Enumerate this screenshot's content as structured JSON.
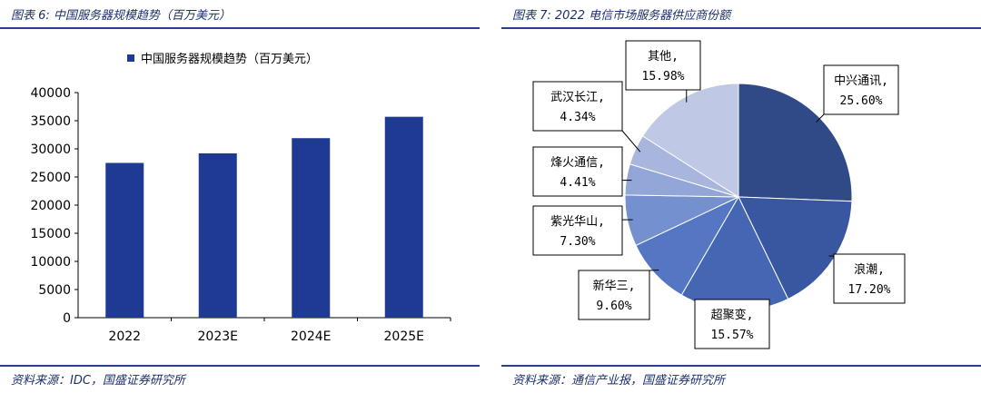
{
  "left": {
    "title": "图表 6:  中国服务器规模趋势（百万美元）",
    "source": "资料来源：IDC，国盛证券研究所"
  },
  "right": {
    "title": "图表 7:  2022 电信市场服务器供应商份额",
    "source": "资料来源：通信产业报，国盛证券研究所"
  },
  "chart_data": [
    {
      "type": "bar",
      "title": "",
      "legend": "中国服务器规模趋势（百万美元）",
      "legend_position": "top",
      "categories": [
        "2022",
        "2023E",
        "2024E",
        "2025E"
      ],
      "values": [
        27500,
        29200,
        31900,
        35700
      ],
      "ylim": [
        0,
        40000
      ],
      "yticks": [
        0,
        5000,
        10000,
        15000,
        20000,
        25000,
        30000,
        35000,
        40000
      ],
      "xlabel": "",
      "ylabel": "",
      "grid": false,
      "colors": {
        "bar": "#1f3a93"
      }
    },
    {
      "type": "pie",
      "title": "",
      "slices": [
        {
          "name": "中兴通讯",
          "value": 25.6,
          "label": "25.60%",
          "color": "#2f4a86"
        },
        {
          "name": "浪潮",
          "value": 17.2,
          "label": "17.20%",
          "color": "#3957a0"
        },
        {
          "name": "超聚变",
          "value": 15.57,
          "label": "15.57%",
          "color": "#4566b3"
        },
        {
          "name": "新华三",
          "value": 9.6,
          "label": "9.60%",
          "color": "#5476c3"
        },
        {
          "name": "紫光华山",
          "value": 7.3,
          "label": "7.30%",
          "color": "#7590cf"
        },
        {
          "name": "烽火通信",
          "value": 4.41,
          "label": "4.41%",
          "color": "#93a6d8"
        },
        {
          "name": "武汉长江",
          "value": 4.34,
          "label": "4.34%",
          "color": "#a8b6de"
        },
        {
          "name": "其他",
          "value": 15.98,
          "label": "15.98%",
          "color": "#bfc9e6"
        }
      ]
    }
  ]
}
